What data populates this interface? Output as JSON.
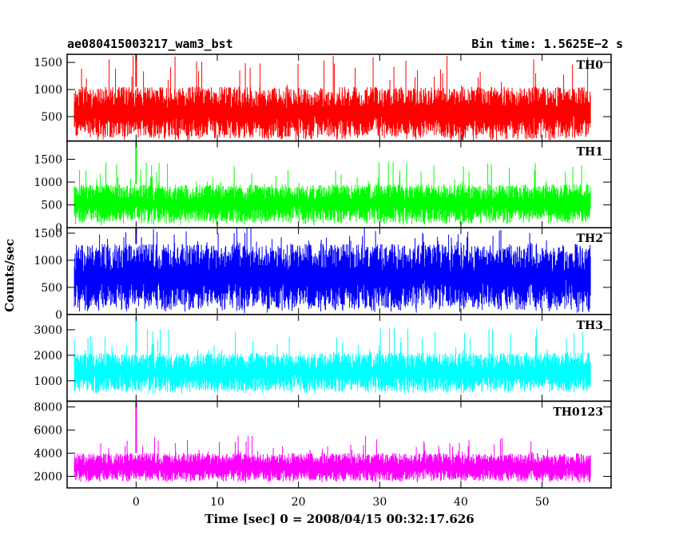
{
  "header": {
    "title": "ae080415003217_wam3_bst",
    "bin_time": "Bin time: 1.5625E−2 s"
  },
  "chart_data": {
    "type": "line",
    "xlabel": "Time [sec] 0 = 2008/04/15 00:32:17.626",
    "ylabel": "Counts/sec",
    "xlim": [
      -8.5,
      58.5
    ],
    "x_ticks": [
      0,
      10,
      20,
      30,
      40,
      50
    ],
    "x_tick_labels": [
      "0",
      "10",
      "20",
      "30",
      "40",
      "50"
    ],
    "data_range_x": [
      -7.6,
      56.0
    ],
    "burst_time": 0.0,
    "grid": false,
    "panels": [
      {
        "name": "TH0",
        "color": "#ff0000",
        "ylim": [
          50,
          1650
        ],
        "y_ticks": [
          500,
          1000,
          1500
        ],
        "y_tick_labels": [
          "500",
          "1000",
          "1500"
        ],
        "typical_low": 150,
        "typical_high": 1050,
        "peak_value": 1650,
        "burst_peak": 1650
      },
      {
        "name": "TH1",
        "color": "#00ff00",
        "ylim": [
          0,
          1900
        ],
        "y_ticks": [
          0,
          500,
          1000,
          1500
        ],
        "y_tick_labels": [
          "0",
          "500",
          "1000",
          "1500"
        ],
        "typical_low": 150,
        "typical_high": 950,
        "peak_value": 1450,
        "burst_peak": 1900
      },
      {
        "name": "TH2",
        "color": "#0000ff",
        "ylim": [
          0,
          1600
        ],
        "y_ticks": [
          0,
          500,
          1000,
          1500
        ],
        "y_tick_labels": [
          "0",
          "500",
          "1000",
          "1500"
        ],
        "typical_low": 150,
        "typical_high": 1300,
        "peak_value": 1600,
        "burst_peak": 1600
      },
      {
        "name": "TH3",
        "color": "#00ffff",
        "ylim": [
          200,
          3600
        ],
        "y_ticks": [
          1000,
          2000,
          3000
        ],
        "y_tick_labels": [
          "1000",
          "2000",
          "3000"
        ],
        "typical_low": 650,
        "typical_high": 2100,
        "peak_value": 3100,
        "burst_peak": 3500
      },
      {
        "name": "TH0123",
        "color": "#ff00ff",
        "ylim": [
          1000,
          8500
        ],
        "y_ticks": [
          2000,
          4000,
          6000,
          8000
        ],
        "y_tick_labels": [
          "2000",
          "4000",
          "6000",
          "8000"
        ],
        "typical_low": 1700,
        "typical_high": 4000,
        "peak_value": 5500,
        "burst_peak": 8500
      }
    ]
  }
}
